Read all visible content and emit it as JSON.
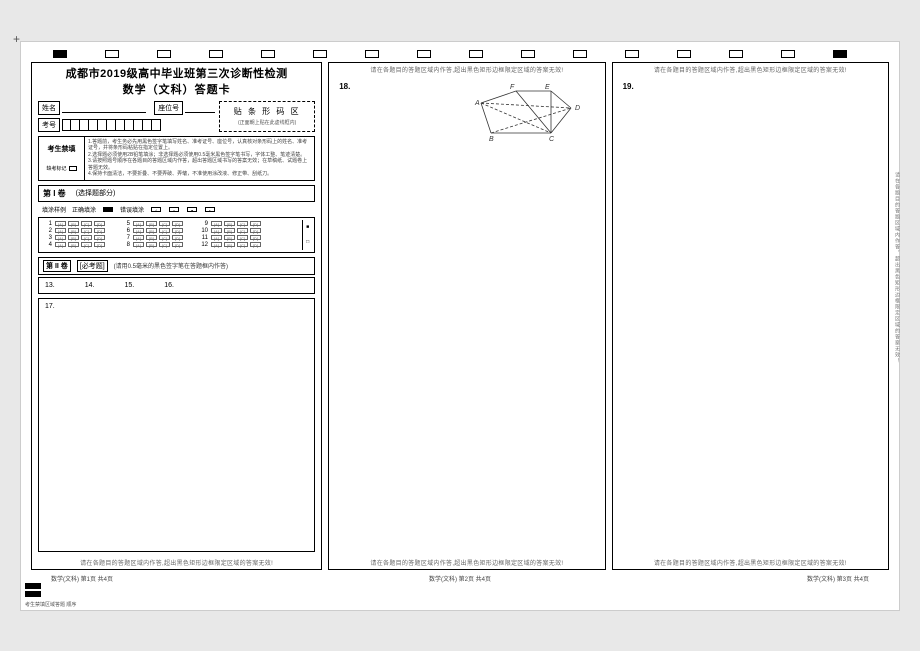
{
  "title": {
    "line1": "成都市2019级高中毕业班第三次诊断性检测",
    "line2": "数学（文科）答题卡"
  },
  "info": {
    "name_label": "姓名",
    "seat_label": "座位号",
    "examno_label": "考号",
    "examno_boxes": 11
  },
  "barcode": {
    "title": "贴 条 形 码 区",
    "sub": "(正面朝上贴在此虚线框内)"
  },
  "notice": {
    "heading": "考生禁填",
    "absent_label": "缺考标记",
    "lines": [
      "1.答题前，考生务必先用黑色签字笔填写姓名、准考证号、座位号，认真核对条形码上的姓名、准考证号，并将条形码粘贴在指定位置上。",
      "2.选择题必须使用2B铅笔填涂；非选择题必须使用0.5毫米黑色签字笔书写，字体工整、笔迹清楚。",
      "3.请按照题号顺序在各题目的答题区域内作答，超出答题区域书写的答案无效；在草稿纸、试题卷上答题无效。",
      "4.保持卡面清洁，不要折叠、不要弄破、弄皱，不准使用涂改液、修正带、刮纸刀。"
    ]
  },
  "section1": {
    "label": "第 I 卷",
    "sub": "(选择题部分)",
    "example_label": "填涂样例",
    "correct_label": "正确填涂",
    "wrong_label": "错误填涂",
    "options": [
      "A",
      "B",
      "C",
      "D"
    ],
    "groups": [
      [
        1,
        2,
        3,
        4
      ],
      [
        5,
        6,
        7,
        8
      ],
      [
        9,
        10,
        11,
        12
      ]
    ]
  },
  "section2": {
    "label": "第 II 卷",
    "tag": "[必考题]",
    "note": "(请用0.5毫米的黑色签字笔在答题框内作答)",
    "fill_in": [
      "13.",
      "14.",
      "15.",
      "16."
    ]
  },
  "questions": {
    "q17": "17.",
    "q18": "18.",
    "q19": "19."
  },
  "diagram": {
    "labels": {
      "A": "A",
      "B": "B",
      "C": "C",
      "D": "D",
      "E": "E",
      "F": "F"
    },
    "stroke": "#333333",
    "dash": "3,2"
  },
  "warnings": {
    "top": "请在各题目的答题区域内作答,超出黑色矩形边框限定区域的答案无效!",
    "bottom": "请在各题目的答题区域内作答,超出黑色矩形边框限定区域的答案无效!",
    "side_right": "请在各题目的答题区域内作答，超出黑色矩形边框限定区域的答案无效！"
  },
  "footer": {
    "left": "数学(文科)  第1页  共4页",
    "middle": "数学(文科)  第2页  共4页",
    "right": "数学(文科)  第3页  共4页",
    "barcode_text": "考生禁填区域答题  顺序"
  },
  "colors": {
    "border": "#000000",
    "text": "#000000",
    "muted": "#666666",
    "bg": "#ffffff"
  }
}
